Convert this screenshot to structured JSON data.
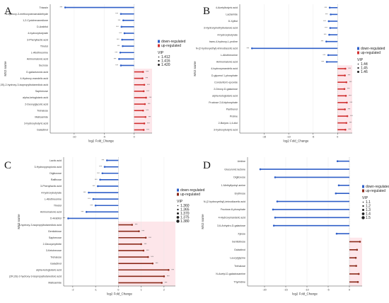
{
  "colors": {
    "down": "#2f5fc8",
    "up": "#d03030",
    "up_dark": "#8b2a1a",
    "highlight": "#fde6ea"
  },
  "chart_data": [
    {
      "panel": "A",
      "type": "bar",
      "xlabel": "log2 Fold_Change",
      "ylabel": "MS2 name",
      "xlim": [
        -14,
        3
      ],
      "xticks": [
        -10,
        -5,
        0
      ],
      "legend": {
        "position": "right",
        "entries": [
          "down-regulated",
          "up-regulated"
        ]
      },
      "size_legend": {
        "title": "VIP",
        "values": [
          "1.412",
          "1.416",
          "1.420"
        ]
      },
      "categories": [
        "Triacsin",
        "4-hydroxy-3-methoxycinnamaldehyde",
        "1,2-Cyclohexanedione",
        "D-Arabitol",
        "4-hydroxybutyrate",
        "3-Phenyllactic acid",
        "Thretol",
        "L-Allothreonine",
        "Aminomalonic acid",
        "Sucrose",
        "D-galacturonic acid",
        "4-Hydroxy-mandelic acid",
        "(2R,3S)-2-hydroxy-3-isopropylbutanedioic acid",
        "Saphenose",
        "alpha-ketoglutaric acid",
        "2-Deoxyglycolic acid",
        "Trehalose",
        "Maltoamide",
        "3-hydroxybutyric acid",
        "Galactinol"
      ],
      "values": [
        -11.5,
        -2.2,
        -1.8,
        -2.1,
        -1.6,
        -2.0,
        -1.9,
        -2.3,
        -2.5,
        -2.2,
        1.5,
        1.4,
        1.7,
        1.6,
        2.0,
        1.8,
        1.5,
        1.9,
        1.7,
        1.6
      ],
      "stars": [
        "***",
        "***",
        "***",
        "***",
        "***",
        "***",
        "***",
        "***",
        "***",
        "***",
        "***",
        "***",
        "***",
        "***",
        "***",
        "***",
        "***",
        "***",
        "***",
        "***"
      ]
    },
    {
      "panel": "B",
      "type": "bar",
      "xlabel": "log2 Fold_Change",
      "ylabel": "MS2 name",
      "xlim": [
        -20,
        3
      ],
      "xticks": [
        -15,
        -10,
        -5,
        0
      ],
      "legend": {
        "position": "right",
        "entries": [
          "down-regulated",
          "up-regulated"
        ]
      },
      "size_legend": {
        "title": "VIP",
        "values": [
          "1.44",
          "1.45",
          "1.46"
        ]
      },
      "categories": [
        "4-Acetylbutyric acid",
        "Lactamide",
        "D-Xylitol",
        "3-Hydroxymethylbutanoic acid",
        "4-hydroxybutyrate",
        "trans-4-hydroxy-L-proline",
        "N-(2-hydroxyethyl)-iminodiacetic acid",
        "L-Allothreonine",
        "Aminomalonic acid",
        "4-hydroxymandelic acid",
        "D-glycerol 1-phosphate",
        "Conduritol b epoxide",
        "2-Deoxy-D-galactose",
        "alpha-ketoglutaric acid",
        "Fructose 2,6-biphosphate",
        "Panthenol",
        "Proline",
        "2-Butyne-1,4-diol",
        "3-hydroxybutyric acid"
      ],
      "values": [
        -1.6,
        -1.4,
        -1.8,
        -1.5,
        -1.7,
        -2.3,
        -17.5,
        -1.9,
        -2.2,
        1.6,
        1.5,
        1.8,
        1.4,
        1.7,
        1.9,
        1.5,
        2.0,
        1.8,
        1.6
      ],
      "stars": [
        "***",
        "***",
        "***",
        "***",
        "***",
        "***",
        "***",
        "***",
        "***",
        "***",
        "***",
        "***",
        "***",
        "***",
        "***",
        "***",
        "***",
        "***",
        "***"
      ]
    },
    {
      "panel": "C",
      "type": "bar",
      "xlabel": "log2 Fold_Change",
      "ylabel": "MS2 name",
      "xlim": [
        -2.4,
        2.5
      ],
      "xticks": [
        -2,
        -1,
        0,
        1,
        2
      ],
      "legend": {
        "position": "right",
        "entries": [
          "down-regulated",
          "up-regulated"
        ]
      },
      "size_legend": {
        "title": "VIP",
        "values": [
          "1.360",
          "1.365",
          "1.370",
          "1.375",
          "1.380"
        ]
      },
      "categories": [
        "Lactic acid",
        "3-Hydroxypropionic acid",
        "Digitoxose",
        "Raffinose",
        "3-Phenyllactic acid",
        "4-hydroxybutyrate",
        "L-Allothreonine",
        "Thretol",
        "Aminomalonic acid",
        "D-Arabitol",
        "3-hydroxy-3-isopropylbutanedioic acid",
        "Gentiobiose",
        "Saphenose",
        "2-Deoxyerythrite",
        "3-Ketohexose",
        "Trehalose",
        "Galactinol",
        "alpha-ketoglutaric acid",
        "(2R,3S)-2-hydroxy-3-isopropylbutanedioic acid",
        "Maltoamide"
      ],
      "values": [
        -0.5,
        -0.6,
        -0.7,
        -0.8,
        -0.9,
        -1.3,
        -1.1,
        -1.0,
        -1.4,
        -2.2,
        0.6,
        0.9,
        1.2,
        1.0,
        1.1,
        1.3,
        1.5,
        2.2,
        2.0,
        1.9
      ],
      "stars": [
        "***",
        "***",
        "***",
        "***",
        "***",
        "***",
        "***",
        "***",
        "***",
        "***",
        "***",
        "***",
        "***",
        "***",
        "***",
        "***",
        "***",
        "***",
        "***",
        "***"
      ]
    },
    {
      "panel": "D",
      "type": "bar",
      "xlabel": "log2 Fold_Change",
      "ylabel": "MS2 name",
      "xlim": [
        -24,
        3
      ],
      "xticks": [
        -20,
        -15,
        -10,
        -5,
        0
      ],
      "legend": {
        "position": "right",
        "entries": [
          "down-regulated",
          "up-regulated"
        ]
      },
      "size_legend": {
        "title": "VIP",
        "values": [
          "1.1",
          "1.2",
          "1.3",
          "1.4",
          "1.5"
        ]
      },
      "categories": [
        "Uridine",
        "Glucuronic lactone",
        "Digitoxose",
        "1-Methyllysinyl amine",
        "Erythrose",
        "N-(2-hydroxyethyl)-iminodiacetic acid",
        "Fructose-6-phosphate",
        "4-Hydroxymandelic acid",
        "3,6-Anhydro-D-galactose",
        "Xylose",
        "Gentiobiose",
        "Galactinol",
        "Leucylglycine",
        "Trehalose",
        "N-Acetyl-D-galactosamine",
        "Thymidine"
      ],
      "values": [
        -2.8,
        -21.0,
        -17.5,
        -2.5,
        -3.2,
        -17.0,
        -18.0,
        -17.5,
        -17.8,
        -3.0,
        2.5,
        1.8,
        1.5,
        1.6,
        2.2,
        2.0
      ],
      "stars": [
        "",
        "",
        "",
        "",
        "",
        "",
        "",
        "",
        "",
        "",
        "",
        "",
        "",
        "",
        "",
        ""
      ]
    }
  ]
}
